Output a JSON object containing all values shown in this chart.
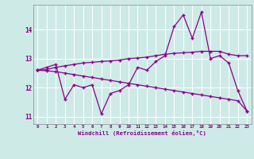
{
  "x": [
    0,
    1,
    2,
    3,
    4,
    5,
    6,
    7,
    8,
    9,
    10,
    11,
    12,
    13,
    14,
    15,
    16,
    17,
    18,
    19,
    20,
    21,
    22,
    23
  ],
  "line1": [
    12.6,
    12.7,
    12.8,
    11.6,
    12.1,
    12.0,
    12.1,
    11.1,
    11.8,
    11.9,
    12.1,
    12.7,
    12.6,
    12.9,
    13.1,
    14.1,
    14.5,
    13.7,
    14.6,
    13.0,
    13.1,
    12.85,
    11.9,
    11.2
  ],
  "line2": [
    12.6,
    12.62,
    12.7,
    12.75,
    12.8,
    12.85,
    12.87,
    12.9,
    12.92,
    12.95,
    13.0,
    13.02,
    13.05,
    13.1,
    13.15,
    13.18,
    13.2,
    13.22,
    13.25,
    13.25,
    13.25,
    13.15,
    13.1,
    13.1
  ],
  "line3": [
    12.6,
    12.58,
    12.55,
    12.5,
    12.45,
    12.4,
    12.35,
    12.3,
    12.25,
    12.2,
    12.15,
    12.1,
    12.05,
    12.0,
    11.95,
    11.9,
    11.85,
    11.8,
    11.75,
    11.7,
    11.65,
    11.6,
    11.55,
    11.2
  ],
  "bg_color": "#ceeae7",
  "line_color": "#880088",
  "grid_color": "#ffffff",
  "xlabel": "Windchill (Refroidissement éolien,°C)",
  "xlim": [
    -0.5,
    23.5
  ],
  "ylim": [
    10.75,
    14.85
  ],
  "yticks": [
    11,
    12,
    13,
    14
  ],
  "xticks": [
    0,
    1,
    2,
    3,
    4,
    5,
    6,
    7,
    8,
    9,
    10,
    11,
    12,
    13,
    14,
    15,
    16,
    17,
    18,
    19,
    20,
    21,
    22,
    23
  ]
}
